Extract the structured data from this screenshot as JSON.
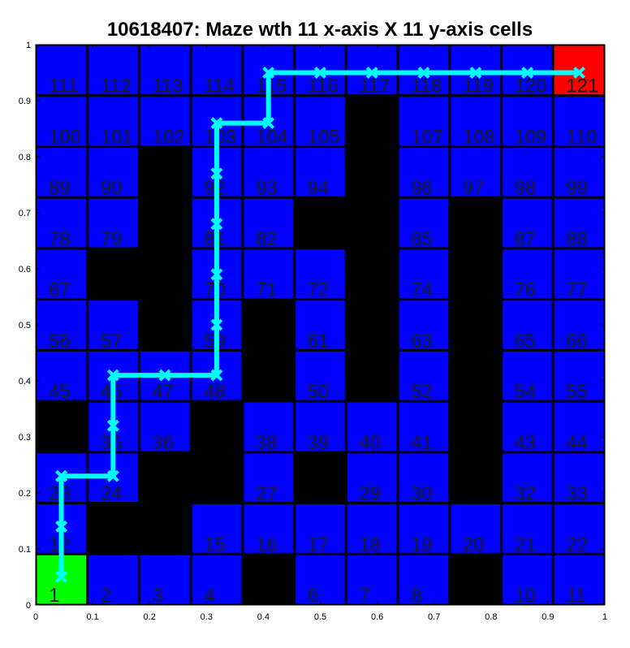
{
  "chart_data": {
    "type": "heatmap",
    "title": "10618407: Maze wth 11 x-axis X 11 y-axis cells",
    "xlabel": "",
    "ylabel": "",
    "grid_size": 11,
    "xlim": [
      0,
      1
    ],
    "ylim": [
      0,
      1
    ],
    "x_ticks": [
      "0",
      "0.1",
      "0.2",
      "0.3",
      "0.4",
      "0.5",
      "0.6",
      "0.7",
      "0.8",
      "0.9",
      "1"
    ],
    "y_ticks": [
      "0",
      "0.1",
      "0.2",
      "0.3",
      "0.4",
      "0.5",
      "0.6",
      "0.7",
      "0.8",
      "0.9",
      "1"
    ],
    "colors": {
      "open": "#0000ff",
      "wall": "#000000",
      "start": "#00ff00",
      "goal": "#ff0000",
      "path": "#00ffff"
    },
    "cells": [
      {
        "id": 1,
        "label": "1",
        "state": "start"
      },
      {
        "id": 2,
        "label": "2",
        "state": "open"
      },
      {
        "id": 3,
        "label": "3",
        "state": "open"
      },
      {
        "id": 4,
        "label": "4",
        "state": "open"
      },
      {
        "id": 5,
        "label": "",
        "state": "wall"
      },
      {
        "id": 6,
        "label": "6",
        "state": "open"
      },
      {
        "id": 7,
        "label": "7",
        "state": "open"
      },
      {
        "id": 8,
        "label": "8",
        "state": "open"
      },
      {
        "id": 9,
        "label": "",
        "state": "wall"
      },
      {
        "id": 10,
        "label": "10",
        "state": "open"
      },
      {
        "id": 11,
        "label": "11",
        "state": "open"
      },
      {
        "id": 12,
        "label": "12",
        "state": "open"
      },
      {
        "id": 13,
        "label": "",
        "state": "wall"
      },
      {
        "id": 14,
        "label": "",
        "state": "wall"
      },
      {
        "id": 15,
        "label": "15",
        "state": "open"
      },
      {
        "id": 16,
        "label": "16",
        "state": "open"
      },
      {
        "id": 17,
        "label": "17",
        "state": "open"
      },
      {
        "id": 18,
        "label": "18",
        "state": "open"
      },
      {
        "id": 19,
        "label": "19",
        "state": "open"
      },
      {
        "id": 20,
        "label": "20",
        "state": "open"
      },
      {
        "id": 21,
        "label": "21",
        "state": "open"
      },
      {
        "id": 22,
        "label": "22",
        "state": "open"
      },
      {
        "id": 23,
        "label": "23",
        "state": "open"
      },
      {
        "id": 24,
        "label": "24",
        "state": "open"
      },
      {
        "id": 25,
        "label": "",
        "state": "wall"
      },
      {
        "id": 26,
        "label": "",
        "state": "wall"
      },
      {
        "id": 27,
        "label": "27",
        "state": "open"
      },
      {
        "id": 28,
        "label": "",
        "state": "wall"
      },
      {
        "id": 29,
        "label": "29",
        "state": "open"
      },
      {
        "id": 30,
        "label": "30",
        "state": "open"
      },
      {
        "id": 31,
        "label": "",
        "state": "wall"
      },
      {
        "id": 32,
        "label": "32",
        "state": "open"
      },
      {
        "id": 33,
        "label": "33",
        "state": "open"
      },
      {
        "id": 34,
        "label": "",
        "state": "wall"
      },
      {
        "id": 35,
        "label": "35",
        "state": "open"
      },
      {
        "id": 36,
        "label": "36",
        "state": "open"
      },
      {
        "id": 37,
        "label": "",
        "state": "wall"
      },
      {
        "id": 38,
        "label": "38",
        "state": "open"
      },
      {
        "id": 39,
        "label": "39",
        "state": "open"
      },
      {
        "id": 40,
        "label": "40",
        "state": "open"
      },
      {
        "id": 41,
        "label": "41",
        "state": "open"
      },
      {
        "id": 42,
        "label": "",
        "state": "wall"
      },
      {
        "id": 43,
        "label": "43",
        "state": "open"
      },
      {
        "id": 44,
        "label": "44",
        "state": "open"
      },
      {
        "id": 45,
        "label": "45",
        "state": "open"
      },
      {
        "id": 46,
        "label": "46",
        "state": "open"
      },
      {
        "id": 47,
        "label": "47",
        "state": "open"
      },
      {
        "id": 48,
        "label": "48",
        "state": "open"
      },
      {
        "id": 49,
        "label": "",
        "state": "wall"
      },
      {
        "id": 50,
        "label": "50",
        "state": "open"
      },
      {
        "id": 51,
        "label": "",
        "state": "wall"
      },
      {
        "id": 52,
        "label": "52",
        "state": "open"
      },
      {
        "id": 53,
        "label": "",
        "state": "wall"
      },
      {
        "id": 54,
        "label": "54",
        "state": "open"
      },
      {
        "id": 55,
        "label": "55",
        "state": "open"
      },
      {
        "id": 56,
        "label": "56",
        "state": "open"
      },
      {
        "id": 57,
        "label": "57",
        "state": "open"
      },
      {
        "id": 58,
        "label": "",
        "state": "wall"
      },
      {
        "id": 59,
        "label": "59",
        "state": "open"
      },
      {
        "id": 60,
        "label": "",
        "state": "wall"
      },
      {
        "id": 61,
        "label": "61",
        "state": "open"
      },
      {
        "id": 62,
        "label": "",
        "state": "wall"
      },
      {
        "id": 63,
        "label": "63",
        "state": "open"
      },
      {
        "id": 64,
        "label": "",
        "state": "wall"
      },
      {
        "id": 65,
        "label": "65",
        "state": "open"
      },
      {
        "id": 66,
        "label": "66",
        "state": "open"
      },
      {
        "id": 67,
        "label": "67",
        "state": "open"
      },
      {
        "id": 68,
        "label": "",
        "state": "wall"
      },
      {
        "id": 69,
        "label": "",
        "state": "wall"
      },
      {
        "id": 70,
        "label": "70",
        "state": "open"
      },
      {
        "id": 71,
        "label": "71",
        "state": "open"
      },
      {
        "id": 72,
        "label": "72",
        "state": "open"
      },
      {
        "id": 73,
        "label": "",
        "state": "wall"
      },
      {
        "id": 74,
        "label": "74",
        "state": "open"
      },
      {
        "id": 75,
        "label": "",
        "state": "wall"
      },
      {
        "id": 76,
        "label": "76",
        "state": "open"
      },
      {
        "id": 77,
        "label": "77",
        "state": "open"
      },
      {
        "id": 78,
        "label": "78",
        "state": "open"
      },
      {
        "id": 79,
        "label": "79",
        "state": "open"
      },
      {
        "id": 80,
        "label": "",
        "state": "wall"
      },
      {
        "id": 81,
        "label": "81",
        "state": "open"
      },
      {
        "id": 82,
        "label": "82",
        "state": "open"
      },
      {
        "id": 83,
        "label": "",
        "state": "wall"
      },
      {
        "id": 84,
        "label": "",
        "state": "wall"
      },
      {
        "id": 85,
        "label": "85",
        "state": "open"
      },
      {
        "id": 86,
        "label": "",
        "state": "wall"
      },
      {
        "id": 87,
        "label": "87",
        "state": "open"
      },
      {
        "id": 88,
        "label": "88",
        "state": "open"
      },
      {
        "id": 89,
        "label": "89",
        "state": "open"
      },
      {
        "id": 90,
        "label": "90",
        "state": "open"
      },
      {
        "id": 91,
        "label": "",
        "state": "wall"
      },
      {
        "id": 92,
        "label": "92",
        "state": "open"
      },
      {
        "id": 93,
        "label": "93",
        "state": "open"
      },
      {
        "id": 94,
        "label": "94",
        "state": "open"
      },
      {
        "id": 95,
        "label": "",
        "state": "wall"
      },
      {
        "id": 96,
        "label": "96",
        "state": "open"
      },
      {
        "id": 97,
        "label": "97",
        "state": "open"
      },
      {
        "id": 98,
        "label": "98",
        "state": "open"
      },
      {
        "id": 99,
        "label": "99",
        "state": "open"
      },
      {
        "id": 100,
        "label": "100",
        "state": "open"
      },
      {
        "id": 101,
        "label": "101",
        "state": "open"
      },
      {
        "id": 102,
        "label": "102",
        "state": "open"
      },
      {
        "id": 103,
        "label": "103",
        "state": "open"
      },
      {
        "id": 104,
        "label": "104",
        "state": "open"
      },
      {
        "id": 105,
        "label": "105",
        "state": "open"
      },
      {
        "id": 106,
        "label": "",
        "state": "wall"
      },
      {
        "id": 107,
        "label": "107",
        "state": "open"
      },
      {
        "id": 108,
        "label": "108",
        "state": "open"
      },
      {
        "id": 109,
        "label": "109",
        "state": "open"
      },
      {
        "id": 110,
        "label": "110",
        "state": "open"
      },
      {
        "id": 111,
        "label": "111",
        "state": "open"
      },
      {
        "id": 112,
        "label": "112",
        "state": "open"
      },
      {
        "id": 113,
        "label": "113",
        "state": "open"
      },
      {
        "id": 114,
        "label": "114",
        "state": "open"
      },
      {
        "id": 115,
        "label": "115",
        "state": "open"
      },
      {
        "id": 116,
        "label": "116",
        "state": "open"
      },
      {
        "id": 117,
        "label": "117",
        "state": "open"
      },
      {
        "id": 118,
        "label": "118",
        "state": "open"
      },
      {
        "id": 119,
        "label": "119",
        "state": "open"
      },
      {
        "id": 120,
        "label": "120",
        "state": "open"
      },
      {
        "id": 121,
        "label": "121",
        "state": "goal"
      }
    ],
    "path": {
      "x": [
        0.045,
        0.045,
        0.045,
        0.045,
        0.136,
        0.136,
        0.136,
        0.136,
        0.227,
        0.318,
        0.318,
        0.318,
        0.318,
        0.318,
        0.318,
        0.318,
        0.409,
        0.409,
        0.5,
        0.591,
        0.682,
        0.773,
        0.864,
        0.955
      ],
      "y": [
        0.05,
        0.14,
        0.23,
        0.23,
        0.23,
        0.32,
        0.41,
        0.41,
        0.41,
        0.41,
        0.5,
        0.59,
        0.68,
        0.77,
        0.86,
        0.86,
        0.86,
        0.95,
        0.95,
        0.95,
        0.95,
        0.95,
        0.95,
        0.95
      ],
      "markers": [
        0,
        1,
        2,
        3,
        4,
        5,
        6,
        8,
        9,
        10,
        11,
        12,
        13,
        14,
        16,
        17,
        18,
        19,
        20,
        21,
        22,
        23
      ]
    }
  }
}
